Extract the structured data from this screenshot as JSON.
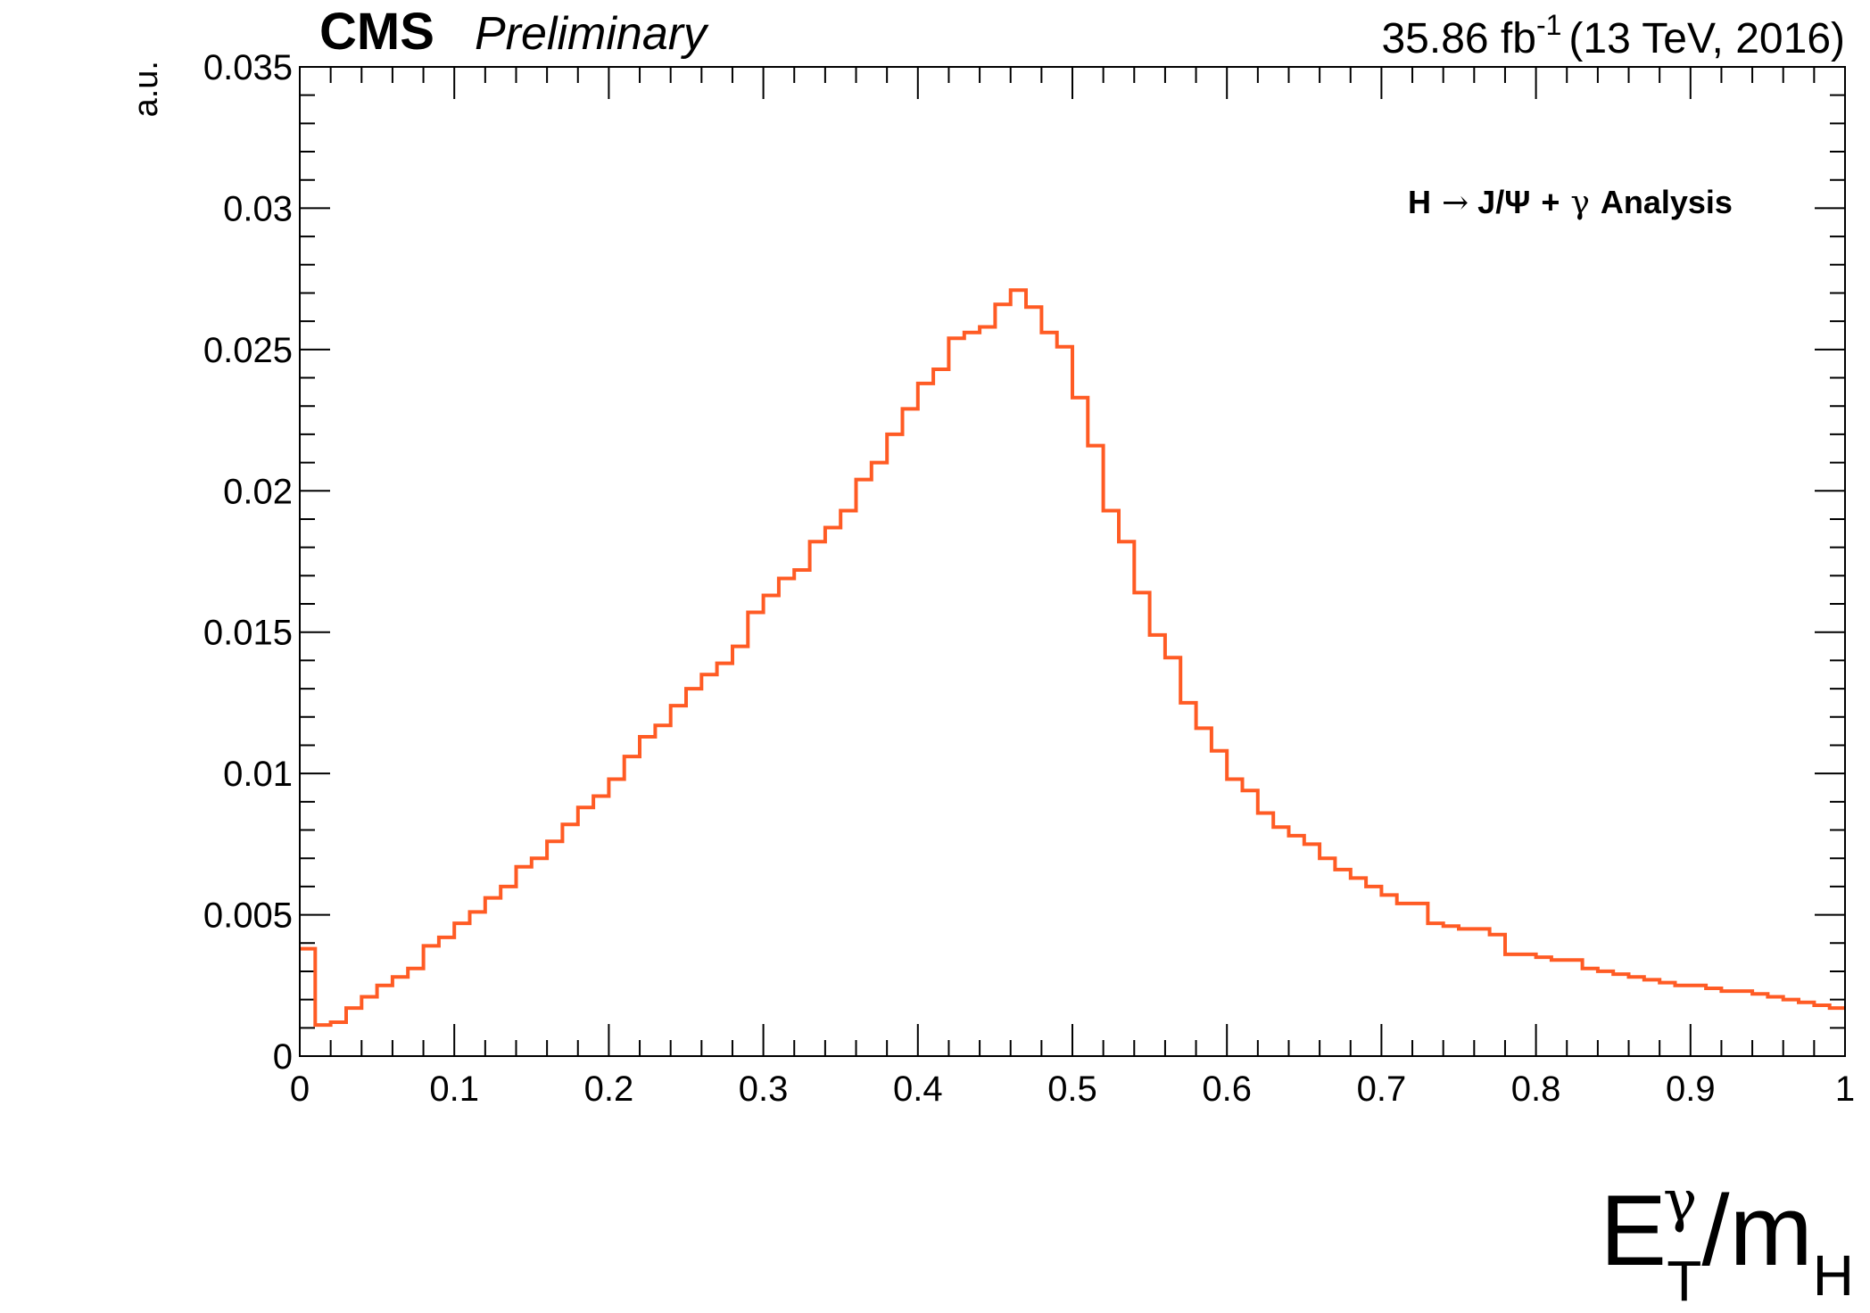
{
  "header": {
    "cms": "CMS",
    "preliminary": "Preliminary",
    "lumi": "35.86 fb",
    "lumi_sup": "-1",
    "energy": "(13 TeV, 2016)"
  },
  "annotation": {
    "H": "H",
    "arrow": "→",
    "jpsi": "J/Ψ",
    "plus": "+",
    "gamma": "γ",
    "analysis": "Analysis"
  },
  "axes": {
    "ylabel": "a.u.",
    "xlabel_main": "E",
    "xlabel_sup": "γ",
    "xlabel_sub": "T",
    "xlabel_slash": "/m",
    "xlabel_sub2": "H"
  },
  "colors": {
    "line": "#ff5b24",
    "frame": "#000000"
  },
  "chart_data": {
    "type": "line",
    "style": "step histogram",
    "title": "",
    "xlabel": "E_T^γ/m_H",
    "ylabel": "a.u.",
    "xlim": [
      0,
      1
    ],
    "ylim": [
      0,
      0.035
    ],
    "bin_width": 0.01,
    "x_ticks": [
      "0",
      "0.1",
      "0.2",
      "0.3",
      "0.4",
      "0.5",
      "0.6",
      "0.7",
      "0.8",
      "0.9",
      "1"
    ],
    "y_ticks": [
      "0",
      "0.005",
      "0.01",
      "0.015",
      "0.02",
      "0.025",
      "0.03",
      "0.035"
    ],
    "grid": false,
    "bin_edges_start": 0,
    "values": [
      0.0038,
      0.0011,
      0.0012,
      0.0017,
      0.0021,
      0.0025,
      0.0028,
      0.0031,
      0.0039,
      0.0042,
      0.0047,
      0.0051,
      0.0056,
      0.006,
      0.0067,
      0.007,
      0.0076,
      0.0082,
      0.0088,
      0.0092,
      0.0098,
      0.0106,
      0.0113,
      0.0117,
      0.0124,
      0.013,
      0.0135,
      0.0139,
      0.0145,
      0.0157,
      0.0163,
      0.0169,
      0.0172,
      0.0182,
      0.0187,
      0.0193,
      0.0204,
      0.021,
      0.022,
      0.0229,
      0.0238,
      0.0243,
      0.0254,
      0.0256,
      0.0258,
      0.0266,
      0.0271,
      0.0265,
      0.0256,
      0.0251,
      0.0233,
      0.0216,
      0.0193,
      0.0182,
      0.0164,
      0.0149,
      0.0141,
      0.0125,
      0.0116,
      0.0108,
      0.0098,
      0.0094,
      0.0086,
      0.0081,
      0.0078,
      0.0075,
      0.007,
      0.0066,
      0.0063,
      0.006,
      0.0057,
      0.0054,
      0.0054,
      0.0047,
      0.0046,
      0.0045,
      0.0045,
      0.0043,
      0.0036,
      0.0036,
      0.0035,
      0.0034,
      0.0034,
      0.0031,
      0.003,
      0.0029,
      0.0028,
      0.0027,
      0.0026,
      0.0025,
      0.0025,
      0.0024,
      0.0023,
      0.0023,
      0.0022,
      0.0021,
      0.002,
      0.0019,
      0.0018,
      0.0017
    ]
  }
}
